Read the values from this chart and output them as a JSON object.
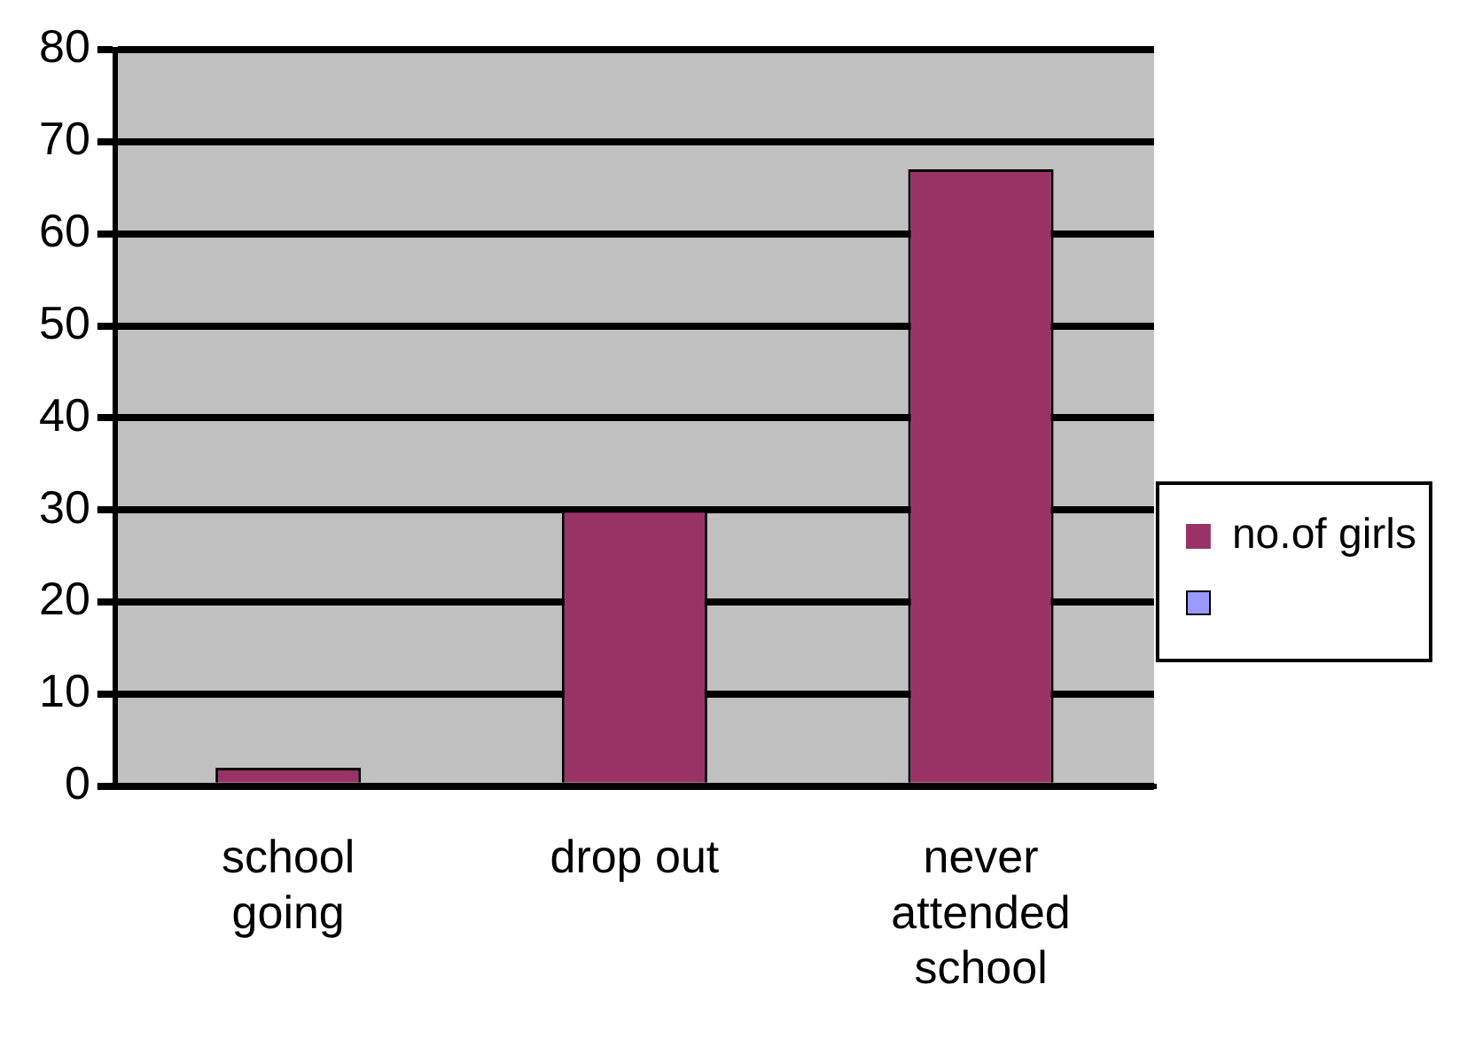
{
  "chart_data": {
    "type": "bar",
    "categories": [
      "school going",
      "drop out",
      "never attended school"
    ],
    "series": [
      {
        "name": "no.of girls",
        "color": "#993366",
        "values": [
          2,
          30,
          67
        ]
      }
    ],
    "ylim": [
      0,
      80
    ],
    "yticks": [
      0,
      10,
      20,
      30,
      40,
      50,
      60,
      70,
      80
    ],
    "grid": "y",
    "legend": "right"
  }
}
